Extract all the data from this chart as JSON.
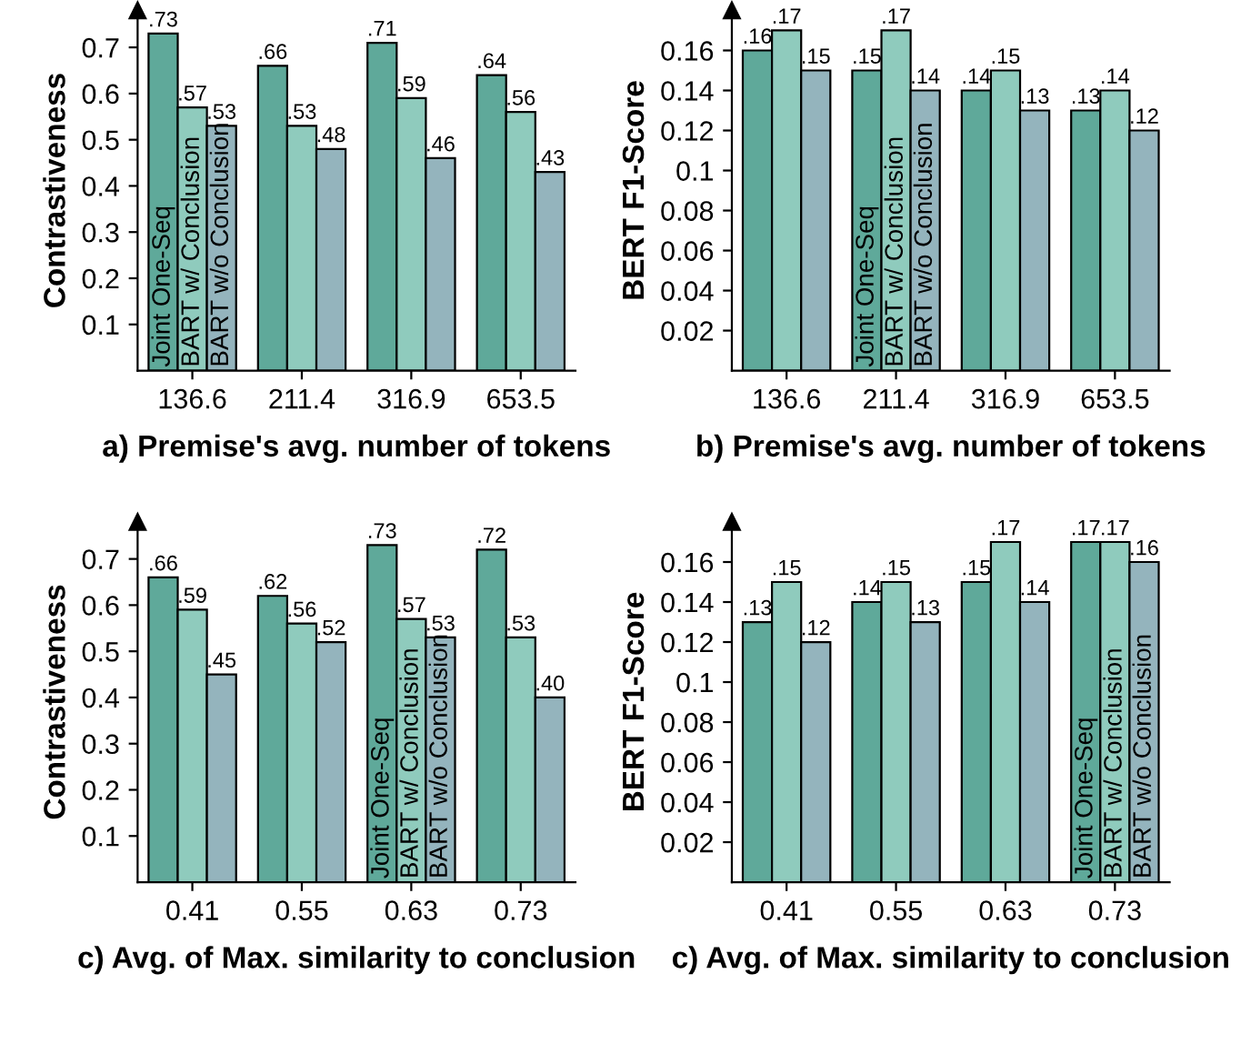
{
  "chart_data": [
    {
      "type": "bar",
      "xlabel": "a) Premise's avg. number of tokens",
      "ylabel": "Contrastiveness",
      "categories": [
        "136.6",
        "211.4",
        "316.9",
        "653.5"
      ],
      "ylim": [
        0,
        0.78
      ],
      "yticks": [
        0.1,
        0.2,
        0.3,
        0.4,
        0.5,
        0.6,
        0.7
      ],
      "grid": false,
      "legend": false,
      "series": [
        {
          "color": "#5fa99a",
          "values": [
            0.73,
            0.66,
            0.71,
            0.64
          ],
          "value_labels": [
            ".73",
            ".66",
            ".71",
            ".64"
          ]
        },
        {
          "color": "#8fcbbd",
          "values": [
            0.57,
            0.53,
            0.59,
            0.56
          ],
          "value_labels": [
            ".57",
            ".53",
            ".59",
            ".56"
          ]
        },
        {
          "color": "#94b4bd",
          "values": [
            0.53,
            0.48,
            0.46,
            0.43
          ],
          "value_labels": [
            ".53",
            ".48",
            ".46",
            ".43"
          ]
        }
      ],
      "annotations": [
        {
          "text": "Joint One-Seq",
          "x": "136.6",
          "y": 0
        },
        {
          "text": "BART w/ Conclusion",
          "x": "136.6",
          "y": 0
        },
        {
          "text": "BART w/o Conclusion",
          "x": "136.6",
          "y": 0
        }
      ]
    },
    {
      "type": "bar",
      "xlabel": "b) Premise's avg. number of tokens",
      "ylabel": "BERT F1-Score",
      "categories": [
        "136.6",
        "211.4",
        "316.9",
        "653.5"
      ],
      "ylim": [
        0,
        0.18
      ],
      "yticks": [
        0.02,
        0.04,
        0.06,
        0.08,
        0.1,
        0.12,
        0.14,
        0.16
      ],
      "grid": false,
      "legend": false,
      "series": [
        {
          "color": "#5fa99a",
          "values": [
            0.16,
            0.15,
            0.14,
            0.13
          ],
          "value_labels": [
            ".16",
            ".15",
            ".14",
            ".13"
          ]
        },
        {
          "color": "#8fcbbd",
          "values": [
            0.17,
            0.17,
            0.15,
            0.14
          ],
          "value_labels": [
            ".17",
            ".17",
            ".15",
            ".14"
          ]
        },
        {
          "color": "#94b4bd",
          "values": [
            0.15,
            0.14,
            0.13,
            0.12
          ],
          "value_labels": [
            ".15",
            ".14",
            ".13",
            ".12"
          ]
        }
      ],
      "annotations": [
        {
          "text": "Joint One-Seq",
          "x": "211.4",
          "y": 0
        },
        {
          "text": "BART w/ Conclusion",
          "x": "211.4",
          "y": 0
        },
        {
          "text": "BART w/o Conclusion",
          "x": "211.4",
          "y": 0
        }
      ]
    },
    {
      "type": "bar",
      "xlabel": "c) Avg. of Max. similarity to conclusion",
      "ylabel": "Contrastiveness",
      "categories": [
        "0.41",
        "0.55",
        "0.63",
        "0.73"
      ],
      "ylim": [
        0,
        0.78
      ],
      "yticks": [
        0.1,
        0.2,
        0.3,
        0.4,
        0.5,
        0.6,
        0.7
      ],
      "grid": false,
      "legend": false,
      "series": [
        {
          "color": "#5fa99a",
          "values": [
            0.66,
            0.62,
            0.73,
            0.72
          ],
          "value_labels": [
            ".66",
            ".62",
            ".73",
            ".72"
          ]
        },
        {
          "color": "#8fcbbd",
          "values": [
            0.59,
            0.56,
            0.57,
            0.53
          ],
          "value_labels": [
            ".59",
            ".56",
            ".57",
            ".53"
          ]
        },
        {
          "color": "#94b4bd",
          "values": [
            0.45,
            0.52,
            0.53,
            0.4
          ],
          "value_labels": [
            ".45",
            ".52",
            ".53",
            ".40"
          ]
        }
      ],
      "annotations": [
        {
          "text": "Joint One-Seq",
          "x": "0.63",
          "y": 0
        },
        {
          "text": "BART w/ Conclusion",
          "x": "0.63",
          "y": 0
        },
        {
          "text": "BART w/o Conclusion",
          "x": "0.63",
          "y": 0
        }
      ]
    },
    {
      "type": "bar",
      "xlabel": "c) Avg. of Max. similarity to conclusion",
      "ylabel": "BERT F1-Score",
      "categories": [
        "0.41",
        "0.55",
        "0.63",
        "0.73"
      ],
      "ylim": [
        0,
        0.18
      ],
      "yticks": [
        0.02,
        0.04,
        0.06,
        0.08,
        0.1,
        0.12,
        0.14,
        0.16
      ],
      "grid": false,
      "legend": false,
      "series": [
        {
          "color": "#5fa99a",
          "values": [
            0.13,
            0.14,
            0.15,
            0.17
          ],
          "value_labels": [
            ".13",
            ".14",
            ".15",
            ".17"
          ]
        },
        {
          "color": "#8fcbbd",
          "values": [
            0.15,
            0.15,
            0.17,
            0.17
          ],
          "value_labels": [
            ".15",
            ".15",
            ".17",
            ".17"
          ]
        },
        {
          "color": "#94b4bd",
          "values": [
            0.12,
            0.13,
            0.14,
            0.16
          ],
          "value_labels": [
            ".12",
            ".13",
            ".14",
            ".16"
          ]
        }
      ],
      "annotations": [
        {
          "text": "Joint One-Seq",
          "x": "0.73",
          "y": 0
        },
        {
          "text": "BART w/ Conclusion",
          "x": "0.73",
          "y": 0
        },
        {
          "text": "BART w/o Conclusion",
          "x": "0.73",
          "y": 0
        }
      ]
    }
  ]
}
